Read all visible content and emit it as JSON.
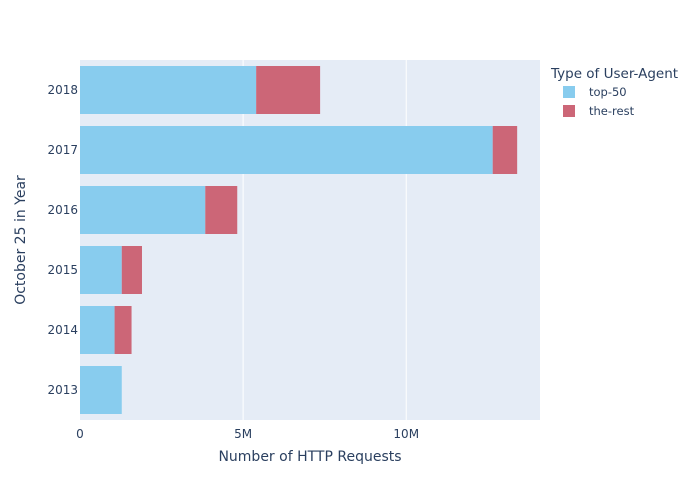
{
  "chart_data": {
    "type": "bar",
    "orientation": "horizontal",
    "barmode": "stack",
    "title": "",
    "xlabel": "Number of HTTP Requests",
    "ylabel": "October 25 in Year",
    "categories": [
      "2013",
      "2014",
      "2015",
      "2016",
      "2017",
      "2018"
    ],
    "x_ticks": [
      {
        "value": 0,
        "label": "0"
      },
      {
        "value": 5000000,
        "label": "5M"
      },
      {
        "value": 10000000,
        "label": "10M"
      }
    ],
    "xlim": [
      0,
      14100000
    ],
    "grid": true,
    "legend": {
      "title": "Type of User-Agent",
      "position": "right"
    },
    "series": [
      {
        "name": "top-50",
        "color": "#88ccee",
        "values": [
          1280000,
          1060000,
          1280000,
          3840000,
          12650000,
          5400000
        ]
      },
      {
        "name": "the-rest",
        "color": "#cc6677",
        "values": [
          0,
          520000,
          620000,
          980000,
          750000,
          1960000
        ]
      }
    ]
  },
  "colors": {
    "plot_background": "#e5ecf6",
    "grid": "#ffffff",
    "text": "#2a3f5f"
  }
}
